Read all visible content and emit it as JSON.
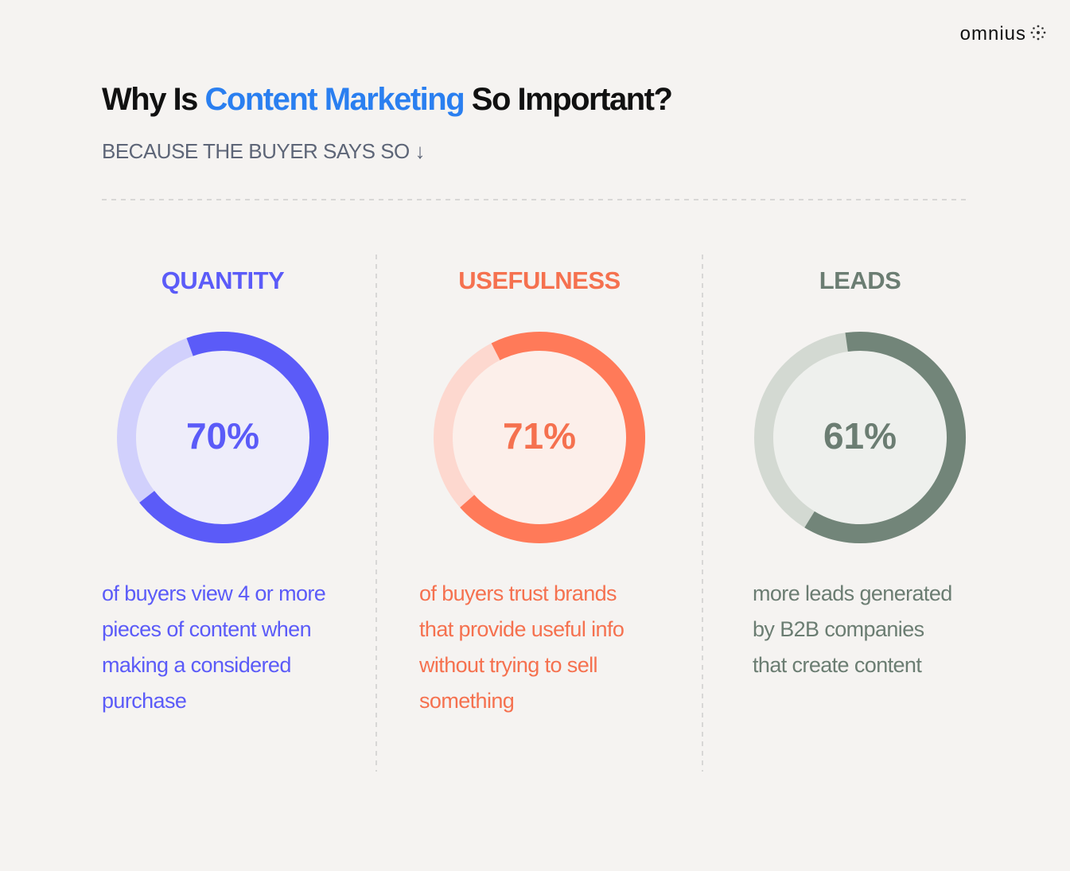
{
  "header": {
    "brand": "omnius",
    "title": [
      "Why Is",
      "Content Marketing",
      "So Important?"
    ],
    "subtitle": "BECAUSE THE BUYER SAYS SO ↓"
  },
  "chart_data": [
    {
      "type": "donut",
      "title": "QUANTITY",
      "values": [
        70
      ],
      "value_labels": [
        "70%"
      ],
      "color": "#5b5bf8",
      "track_color": "#d1d0fc",
      "center_color": "#eeedfa",
      "text_color": "#5b5bf8",
      "description": [
        "of buyers view 4 or more",
        "pieces of content when",
        "making a considered",
        "purchase"
      ]
    },
    {
      "type": "donut",
      "title": "USEFULNESS",
      "values": [
        71
      ],
      "value_labels": [
        "71%"
      ],
      "color": "#ff7a59",
      "track_color": "#fdd8cf",
      "center_color": "#fcefea",
      "text_color": "#f5714f",
      "description": [
        "of buyers trust brands",
        "that provide useful info",
        "without trying to sell",
        "something"
      ]
    },
    {
      "type": "donut",
      "title": "LEADS",
      "values": [
        61
      ],
      "value_labels": [
        "61%"
      ],
      "color": "#728579",
      "track_color": "#d3d9d2",
      "center_color": "#eef0ed",
      "text_color": "#6b7d72",
      "description": [
        "more leads generated",
        "by B2B companies",
        "that create content"
      ]
    }
  ]
}
